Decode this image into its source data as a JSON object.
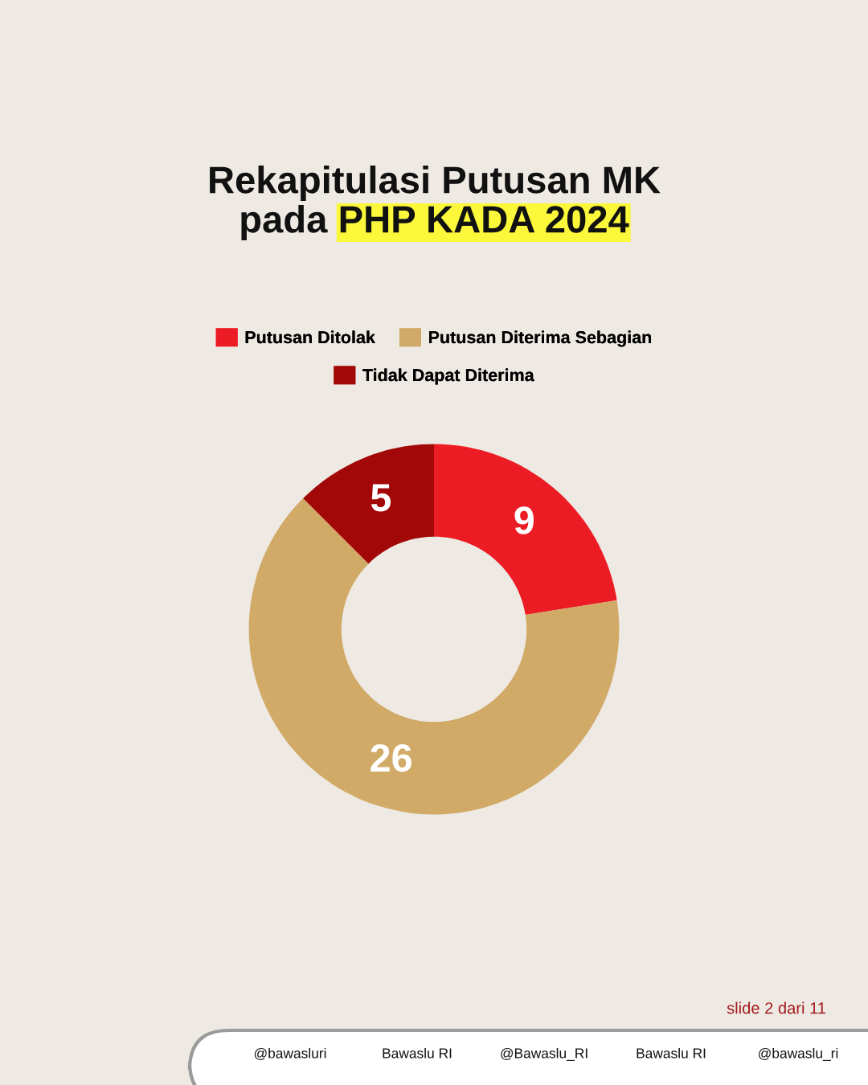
{
  "chart_data": {
    "type": "donut",
    "title": "Rekapitulasi Putusan MK\npada PHP KADA 2024",
    "categories": [
      "Putusan Ditolak",
      "Putusan Diterima Sebagian",
      "Tidak Dapat Diterima"
    ],
    "values": [
      9,
      26,
      5
    ],
    "colors": [
      "#ec1c24",
      "#d1aa68",
      "#a30808"
    ],
    "data_labels": true,
    "legend": "top",
    "annotations": [
      "slide 2 dari 11",
      "@bawasluri",
      "Bawaslu RI",
      "@Bawaslu_RI",
      "Bawaslu RI",
      "@bawaslu_ri"
    ]
  }
}
